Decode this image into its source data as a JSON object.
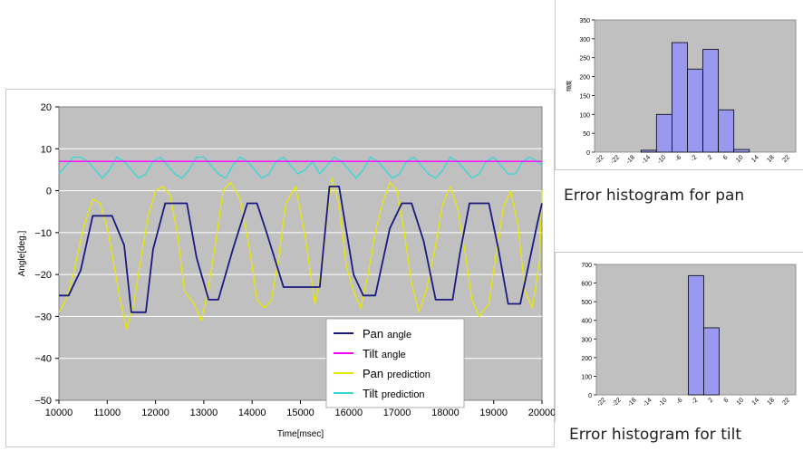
{
  "chart_data": [
    {
      "type": "line",
      "title": "",
      "xlabel": "Time[msec]",
      "ylabel": "Angle[deg.]",
      "xlim": [
        10000,
        20000
      ],
      "ylim": [
        -50,
        20
      ],
      "xticks": [
        "10000",
        "11000",
        "12000",
        "13000",
        "14000",
        "15000",
        "16000",
        "17000",
        "18000",
        "19000",
        "20000"
      ],
      "yticks": [
        "20",
        "10",
        "0",
        "−10",
        "−20",
        "−30",
        "−40",
        "−50"
      ],
      "grid": true,
      "legend": "inside-bottom-right",
      "series": [
        {
          "name_main": "Pan",
          "name_sub": "angle",
          "color": "#1a1a80",
          "x": [
            10000,
            10200,
            10450,
            10700,
            10950,
            11100,
            11350,
            11500,
            11800,
            11950,
            12200,
            12650,
            12850,
            13100,
            13300,
            13600,
            13900,
            14100,
            14300,
            14650,
            14900,
            15400,
            15600,
            15800,
            16100,
            16300,
            16550,
            16850,
            17100,
            17300,
            17550,
            17800,
            18150,
            18300,
            18500,
            18900,
            19100,
            19300,
            19550,
            19700,
            19900,
            20000
          ],
          "y": [
            -25,
            -25,
            -19,
            -6,
            -6,
            -6,
            -13,
            -29,
            -29,
            -14,
            -3,
            -3,
            -16,
            -26,
            -26,
            -14,
            -3,
            -3,
            -10,
            -23,
            -23,
            -23,
            1,
            1,
            -20,
            -25,
            -25,
            -9,
            -3,
            -3,
            -12,
            -26,
            -26,
            -15,
            -3,
            -3,
            -14,
            -27,
            -27,
            -19,
            -8,
            -3
          ]
        },
        {
          "name_main": "Tilt",
          "name_sub": "angle",
          "color": "#ff00ff",
          "x": [
            10000,
            20000
          ],
          "y": [
            7,
            7
          ]
        },
        {
          "name_main": "Pan",
          "name_sub": "prediction",
          "color": "#e8e800",
          "x": [
            10000,
            10150,
            10300,
            10500,
            10700,
            10850,
            11000,
            11100,
            11250,
            11400,
            11550,
            11700,
            11850,
            12000,
            12150,
            12300,
            12450,
            12600,
            12800,
            12950,
            13100,
            13250,
            13400,
            13550,
            13750,
            13950,
            14100,
            14250,
            14400,
            14550,
            14700,
            14900,
            15100,
            15300,
            15450,
            15550,
            15650,
            15800,
            15950,
            16100,
            16250,
            16400,
            16550,
            16700,
            16850,
            17000,
            17150,
            17300,
            17450,
            17600,
            17800,
            17950,
            18100,
            18250,
            18400,
            18550,
            18700,
            18900,
            19050,
            19200,
            19350,
            19500,
            19650,
            19800,
            19950,
            20000
          ],
          "y": [
            -29,
            -26,
            -20,
            -9,
            -2,
            -3,
            -9,
            -15,
            -25,
            -33,
            -27,
            -16,
            -6,
            0,
            1,
            -1,
            -10,
            -24,
            -27,
            -31,
            -23,
            -12,
            0,
            2,
            -2,
            -14,
            -26,
            -28,
            -26,
            -16,
            -3,
            1,
            -11,
            -27,
            -18,
            -6,
            3,
            -3,
            -18,
            -24,
            -28,
            -20,
            -10,
            -3,
            2,
            0,
            -10,
            -22,
            -29,
            -24,
            -13,
            -3,
            1,
            -4,
            -14,
            -26,
            -30,
            -27,
            -15,
            -4,
            0,
            -8,
            -24,
            -28,
            -17,
            0
          ]
        },
        {
          "name_main": "Tilt",
          "name_sub": "prediction",
          "color": "#33d8d8",
          "x": [
            10000,
            10150,
            10300,
            10450,
            10600,
            10750,
            10900,
            11050,
            11200,
            11350,
            11500,
            11650,
            11800,
            11950,
            12100,
            12250,
            12400,
            12550,
            12700,
            12850,
            13000,
            13150,
            13300,
            13450,
            13600,
            13750,
            13900,
            14050,
            14200,
            14350,
            14500,
            14650,
            14800,
            14950,
            15100,
            15250,
            15400,
            15550,
            15700,
            15850,
            16000,
            16150,
            16300,
            16450,
            16600,
            16750,
            16900,
            17050,
            17200,
            17350,
            17500,
            17650,
            17800,
            17950,
            18100,
            18250,
            18400,
            18550,
            18700,
            18850,
            19000,
            19150,
            19300,
            19450,
            19600,
            19750,
            19900,
            20000
          ],
          "y": [
            4,
            6,
            8,
            8,
            7,
            5,
            3,
            5,
            8,
            7,
            5,
            3,
            4,
            7,
            8,
            6,
            4,
            3,
            5,
            8,
            8,
            6,
            4,
            3,
            6,
            8,
            7,
            5,
            3,
            4,
            7,
            8,
            6,
            4,
            5,
            7,
            4,
            6,
            8,
            7,
            5,
            3,
            5,
            8,
            7,
            5,
            3,
            4,
            7,
            8,
            6,
            4,
            3,
            5,
            8,
            7,
            5,
            3,
            4,
            7,
            8,
            6,
            4,
            4,
            7,
            8,
            7,
            6
          ]
        }
      ]
    },
    {
      "type": "bar",
      "title": "",
      "caption": "Error histogram for pan",
      "ylabel": "頻度",
      "ylim": [
        0,
        350
      ],
      "yticks": [
        "350",
        "300",
        "250",
        "200",
        "150",
        "100",
        "50",
        "0"
      ],
      "categories": [
        "-22",
        "-22",
        "-18",
        "-14",
        "-10",
        "-6",
        "-2",
        "2",
        "6",
        "10",
        "14",
        "18",
        "22"
      ],
      "values": [
        0,
        0,
        0,
        5,
        100,
        290,
        220,
        272,
        112,
        7,
        0,
        0,
        0
      ],
      "bar_color": "#9999f0"
    },
    {
      "type": "bar",
      "title": "",
      "caption": "Error histogram for tilt",
      "ylabel": "",
      "ylim": [
        0,
        700
      ],
      "yticks": [
        "700",
        "600",
        "500",
        "400",
        "300",
        "200",
        "100",
        "0"
      ],
      "categories": [
        "-22",
        "-22",
        "-18",
        "-14",
        "-10",
        "-6",
        "-2",
        "2",
        "6",
        "10",
        "14",
        "18",
        "22"
      ],
      "values": [
        0,
        0,
        0,
        0,
        0,
        0,
        640,
        360,
        0,
        0,
        0,
        0,
        0
      ],
      "bar_color": "#9999f0"
    }
  ],
  "colors": {
    "plot_bg": "#c0c0c0",
    "grid": "#ffffff",
    "axis": "#000000"
  }
}
